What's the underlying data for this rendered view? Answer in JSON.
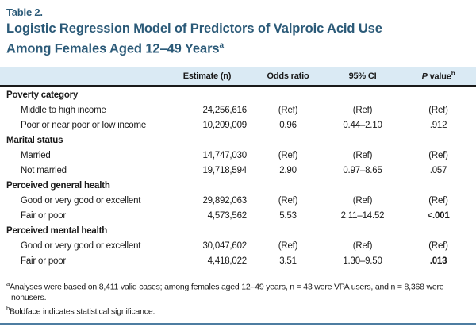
{
  "table_label": "Table 2.",
  "title": {
    "text": "Logistic Regression Model of Predictors of Valproic Acid Use Among Females Aged 12–49 Years",
    "superscript": "a"
  },
  "columns": {
    "estimate": "Estimate (n)",
    "odds_ratio": "Odds ratio",
    "ci": "95% CI",
    "p_italic": "P",
    "p_rest": " value",
    "p_superscript": "b"
  },
  "rows": [
    {
      "type": "group",
      "label": "Poverty category"
    },
    {
      "type": "data",
      "label": "Middle to high income",
      "estimate": "24,256,616",
      "odds_ratio": "(Ref)",
      "ci": "(Ref)",
      "p_value": "(Ref)",
      "p_bold": false
    },
    {
      "type": "data",
      "label": "Poor or near poor or low income",
      "estimate": "10,209,009",
      "odds_ratio": "0.96",
      "ci": "0.44–2.10",
      "p_value": ".912",
      "p_bold": false
    },
    {
      "type": "group",
      "label": "Marital status"
    },
    {
      "type": "data",
      "label": "Married",
      "estimate": "14,747,030",
      "odds_ratio": "(Ref)",
      "ci": "(Ref)",
      "p_value": "(Ref)",
      "p_bold": false
    },
    {
      "type": "data",
      "label": "Not married",
      "estimate": "19,718,594",
      "odds_ratio": "2.90",
      "ci": "0.97–8.65",
      "p_value": ".057",
      "p_bold": false
    },
    {
      "type": "group",
      "label": "Perceived general health"
    },
    {
      "type": "data",
      "label": "Good or very good or excellent",
      "estimate": "29,892,063",
      "odds_ratio": "(Ref)",
      "ci": "(Ref)",
      "p_value": "(Ref)",
      "p_bold": false
    },
    {
      "type": "data",
      "label": "Fair or poor",
      "estimate": "4,573,562",
      "odds_ratio": "5.53",
      "ci": "2.11–14.52",
      "p_value": "<.001",
      "p_bold": true
    },
    {
      "type": "group",
      "label": "Perceived mental health"
    },
    {
      "type": "data",
      "label": "Good or very good or excellent",
      "estimate": "30,047,602",
      "odds_ratio": "(Ref)",
      "ci": "(Ref)",
      "p_value": "(Ref)",
      "p_bold": false
    },
    {
      "type": "data",
      "label": "Fair or poor",
      "estimate": "4,418,022",
      "odds_ratio": "3.51",
      "ci": "1.30–9.50",
      "p_value": ".013",
      "p_bold": true
    }
  ],
  "footnotes": [
    {
      "marker": "a",
      "text": "Analyses were based on 8,411 valid cases; among females aged 12–49 years, n = 43 were VPA users, and n = 8,368 were nonusers."
    },
    {
      "marker": "b",
      "text": "Boldface indicates statistical significance."
    }
  ],
  "colors": {
    "title_blue": "#2b5a78",
    "header_background": "#daeaf4",
    "header_rule": "#1a1a1a",
    "bottom_rule": "#4d7da1"
  }
}
